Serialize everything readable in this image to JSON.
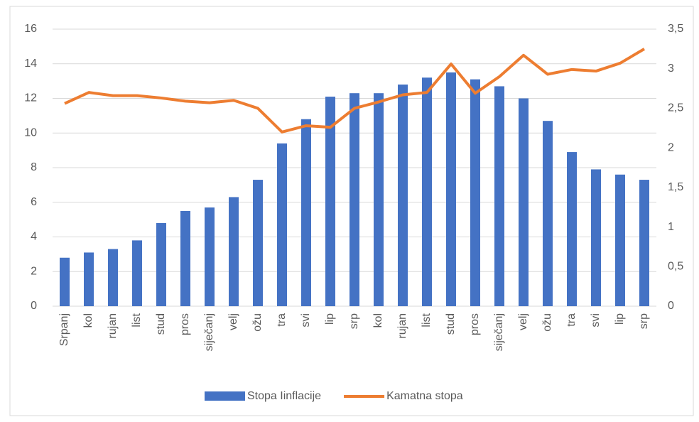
{
  "chart_data": {
    "type": "bar",
    "categories": [
      "Srpanj",
      "kol",
      "rujan",
      "list",
      "stud",
      "pros",
      "siječanj",
      "velj",
      "ožu",
      "tra",
      "svi",
      "lip",
      "srp",
      "kol",
      "rujan",
      "list",
      "stud",
      "pros",
      "siječanj",
      "velj",
      "ožu",
      "tra",
      "svi",
      "lip",
      "srp"
    ],
    "series": [
      {
        "name": "Stopa Iinflacije",
        "color": "#4472c4",
        "type": "bar",
        "values": [
          2.8,
          3.1,
          3.3,
          3.8,
          4.8,
          5.5,
          5.7,
          6.3,
          7.3,
          9.4,
          10.8,
          12.1,
          12.3,
          12.3,
          12.8,
          13.2,
          13.5,
          13.1,
          12.7,
          12.0,
          10.7,
          8.9,
          7.9,
          7.6,
          7.3
        ]
      },
      {
        "name": "Kamatna stopa",
        "color": "#ed7d31",
        "type": "line",
        "axis": "y2",
        "values": [
          2.56,
          2.7,
          2.66,
          2.66,
          2.63,
          2.59,
          2.57,
          2.6,
          2.5,
          2.2,
          2.28,
          2.26,
          2.5,
          2.58,
          2.67,
          2.7,
          3.06,
          2.69,
          2.9,
          3.17,
          2.93,
          2.99,
          2.97,
          3.07,
          3.25
        ]
      }
    ],
    "ylim": [
      0,
      16
    ],
    "yticks": [
      0,
      2,
      4,
      6,
      8,
      10,
      12,
      14,
      16
    ],
    "y2lim": [
      0,
      3.5
    ],
    "y2ticks": [
      0,
      {
        "value": 0.5,
        "label": "0,5"
      },
      1,
      {
        "value": 1.5,
        "label": "1,5"
      },
      2,
      {
        "value": 2.5,
        "label": "2,5"
      },
      3,
      {
        "value": 3.5,
        "label": "3,5"
      }
    ],
    "grid": true,
    "legend": "bottom"
  }
}
